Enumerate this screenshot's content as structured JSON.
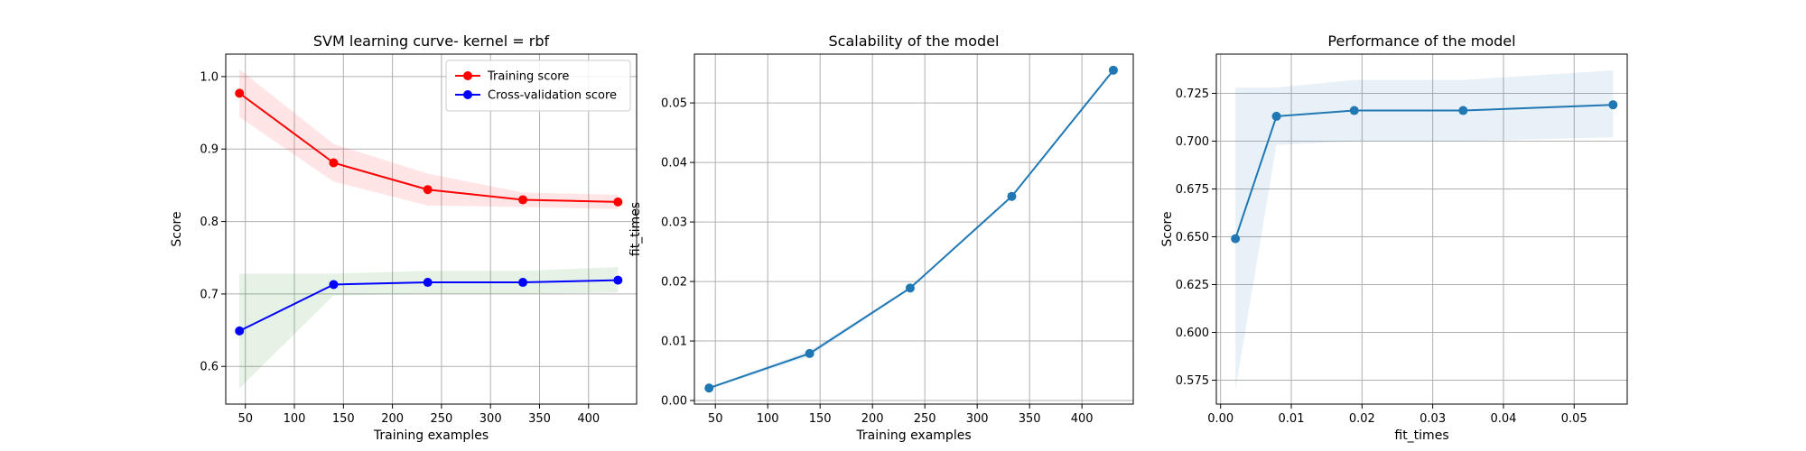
{
  "colors": {
    "train": "#ff0000",
    "cv": "#0000ff",
    "train_band": "#ff0000",
    "cv_band": "#008000",
    "blue_line": "#1f77b4",
    "band_blue": "#1f77b4",
    "grid": "#b0b0b0"
  },
  "chart_data": [
    {
      "type": "line",
      "title": "SVM learning curve- kernel = rbf",
      "xlabel": "Training examples",
      "ylabel": "Score",
      "xlim": [
        30,
        449
      ],
      "ylim": [
        0.548,
        1.031
      ],
      "xticks": [
        50,
        100,
        150,
        200,
        250,
        300,
        350,
        400
      ],
      "yticks": [
        0.6,
        0.7,
        0.8,
        0.9,
        1.0
      ],
      "ytick_labels": [
        "0.6",
        "0.7",
        "0.8",
        "0.9",
        "1.0"
      ],
      "grid": true,
      "legend_position": "top-right",
      "x": [
        44,
        140,
        236,
        333,
        430
      ],
      "series": [
        {
          "name": "Training score",
          "color_key": "train",
          "band_key": "train_band",
          "values": [
            0.977,
            0.881,
            0.844,
            0.83,
            0.827
          ],
          "lower": [
            0.944,
            0.855,
            0.822,
            0.82,
            0.817
          ],
          "upper": [
            1.01,
            0.907,
            0.866,
            0.84,
            0.837
          ]
        },
        {
          "name": "Cross-validation score",
          "color_key": "cv",
          "band_key": "cv_band",
          "values": [
            0.649,
            0.713,
            0.716,
            0.716,
            0.719
          ],
          "lower": [
            0.57,
            0.698,
            0.7,
            0.7,
            0.702
          ],
          "upper": [
            0.728,
            0.728,
            0.732,
            0.732,
            0.737
          ]
        }
      ]
    },
    {
      "type": "line",
      "title": "Scalability of the model",
      "xlabel": "Training examples",
      "ylabel": "fit_times",
      "xlim": [
        30,
        449
      ],
      "ylim": [
        -0.0006,
        0.0582
      ],
      "xticks": [
        50,
        100,
        150,
        200,
        250,
        300,
        350,
        400
      ],
      "yticks": [
        0.0,
        0.01,
        0.02,
        0.03,
        0.04,
        0.05
      ],
      "ytick_labels": [
        "0.00",
        "0.01",
        "0.02",
        "0.03",
        "0.04",
        "0.05"
      ],
      "grid": true,
      "x": [
        44,
        140,
        236,
        333,
        430
      ],
      "series": [
        {
          "color_key": "blue_line",
          "band_key": "band_blue",
          "values": [
            0.0021,
            0.0079,
            0.0189,
            0.0343,
            0.0555
          ],
          "lower": [
            0.0019,
            0.0074,
            0.0187,
            0.0341,
            0.0553
          ],
          "upper": [
            0.0023,
            0.0084,
            0.0191,
            0.0345,
            0.0557
          ]
        }
      ]
    },
    {
      "type": "line",
      "title": "Performance of the model",
      "xlabel": "fit_times",
      "ylabel": "Score",
      "xlim": [
        -0.0006,
        0.0575
      ],
      "ylim": [
        0.5625,
        0.7455
      ],
      "xticks": [
        0.0,
        0.01,
        0.02,
        0.03,
        0.04,
        0.05
      ],
      "xtick_labels": [
        "0.00",
        "0.01",
        "0.02",
        "0.03",
        "0.04",
        "0.05"
      ],
      "yticks": [
        0.575,
        0.6,
        0.625,
        0.65,
        0.675,
        0.7,
        0.725
      ],
      "ytick_labels": [
        "0.575",
        "0.600",
        "0.625",
        "0.650",
        "0.675",
        "0.700",
        "0.725"
      ],
      "grid": true,
      "x": [
        0.0021,
        0.0079,
        0.0189,
        0.0343,
        0.0555
      ],
      "series": [
        {
          "color_key": "blue_line",
          "band_key": "band_blue",
          "values": [
            0.649,
            0.713,
            0.716,
            0.716,
            0.719
          ],
          "lower": [
            0.57,
            0.698,
            0.7,
            0.7,
            0.702
          ],
          "upper": [
            0.728,
            0.728,
            0.732,
            0.732,
            0.737
          ]
        }
      ]
    }
  ]
}
